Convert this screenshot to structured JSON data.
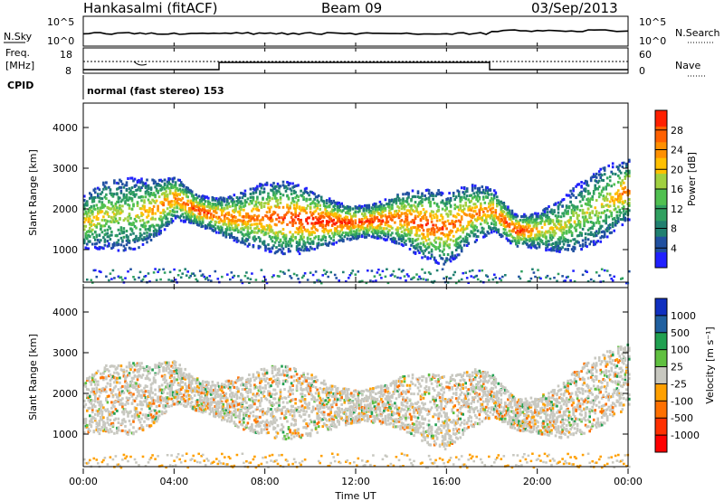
{
  "header": {
    "station": "Hankasalmi (fitACF)",
    "beam": "Beam 09",
    "date": "03/Sep/2013"
  },
  "sky_panel": {
    "left_label": "N.Sky",
    "right_label": "N.Search",
    "left_ticks": [
      "10^5",
      "10^0"
    ],
    "right_ticks": [
      "10^5",
      "10^0"
    ]
  },
  "freq_panel": {
    "left_label_1": "Freq.",
    "left_label_2": "[MHz]",
    "left_ticks": [
      "18",
      "8"
    ],
    "right_label": "Nave",
    "right_ticks": [
      "60",
      "0"
    ]
  },
  "cpid_panel": {
    "label": "CPID",
    "text": "normal (fast stereo) 153"
  },
  "power_panel": {
    "ylabel": "Slant Range [km]",
    "yticks": [
      "4000",
      "3000",
      "2000",
      "1000"
    ],
    "colorbar_label": "Power [dB]",
    "colorbar_ticks": [
      "28",
      "24",
      "20",
      "16",
      "12",
      "8",
      "4"
    ],
    "colors": [
      "#2020ff",
      "#2050a0",
      "#208070",
      "#30a060",
      "#50c050",
      "#a0d040",
      "#ffc000",
      "#ff9000",
      "#ff6000",
      "#ff2000"
    ]
  },
  "velocity_panel": {
    "ylabel": "Slant Range [km]",
    "yticks": [
      "4000",
      "3000",
      "2000",
      "1000"
    ],
    "colorbar_label": "Velocity [m s⁻¹]",
    "colorbar_ticks": [
      "1000",
      "500",
      "100",
      "25",
      "-25",
      "-100",
      "-500",
      "-1000"
    ],
    "colors": [
      "#1030c0",
      "#2060a0",
      "#20a050",
      "#60c040",
      "#c8c8c0",
      "#ffa000",
      "#ff7000",
      "#ff3000",
      "#ff0000"
    ]
  },
  "xaxis": {
    "label": "Time UT",
    "ticks": [
      "00:00",
      "04:00",
      "08:00",
      "12:00",
      "16:00",
      "20:00",
      "00:00"
    ]
  },
  "chart_data": {
    "type": "heatmap",
    "title": "Hankasalmi (fitACF) Beam 09 03/Sep/2013",
    "xlabel": "Time UT",
    "ylabel": "Slant Range [km]",
    "x_range_hours": [
      0,
      24
    ],
    "y_range_km": [
      200,
      4600
    ],
    "cpid": "normal (fast stereo) 153",
    "power_colorbar": {
      "label": "Power [dB]",
      "range": [
        0,
        32
      ],
      "ticks": [
        4,
        8,
        12,
        16,
        20,
        24,
        28
      ]
    },
    "velocity_colorbar": {
      "label": "Velocity [m s⁻¹]",
      "ticks": [
        1000,
        500,
        100,
        25,
        -25,
        -100,
        -500,
        -1000
      ]
    },
    "frequency_MHz": {
      "ticks": [
        8,
        18
      ]
    },
    "nave": {
      "ticks": [
        0,
        60
      ]
    },
    "scatter_band": {
      "hours": [
        0,
        1,
        2,
        3,
        4,
        5,
        6,
        7,
        8,
        9,
        10,
        11,
        12,
        13,
        14,
        15,
        16,
        17,
        18,
        19,
        20,
        21,
        22,
        23,
        24
      ],
      "center_km": [
        1700,
        1900,
        1900,
        2000,
        2300,
        2000,
        1850,
        1800,
        1850,
        1800,
        1750,
        1700,
        1700,
        1750,
        1800,
        1650,
        1550,
        1900,
        2000,
        1500,
        1500,
        1600,
        1900,
        2200,
        2500
      ],
      "peak_power_dB": [
        20,
        18,
        16,
        22,
        24,
        28,
        26,
        24,
        26,
        28,
        30,
        30,
        28,
        28,
        26,
        28,
        26,
        24,
        24,
        30,
        22,
        18,
        16,
        18,
        26
      ]
    },
    "grid": false
  }
}
